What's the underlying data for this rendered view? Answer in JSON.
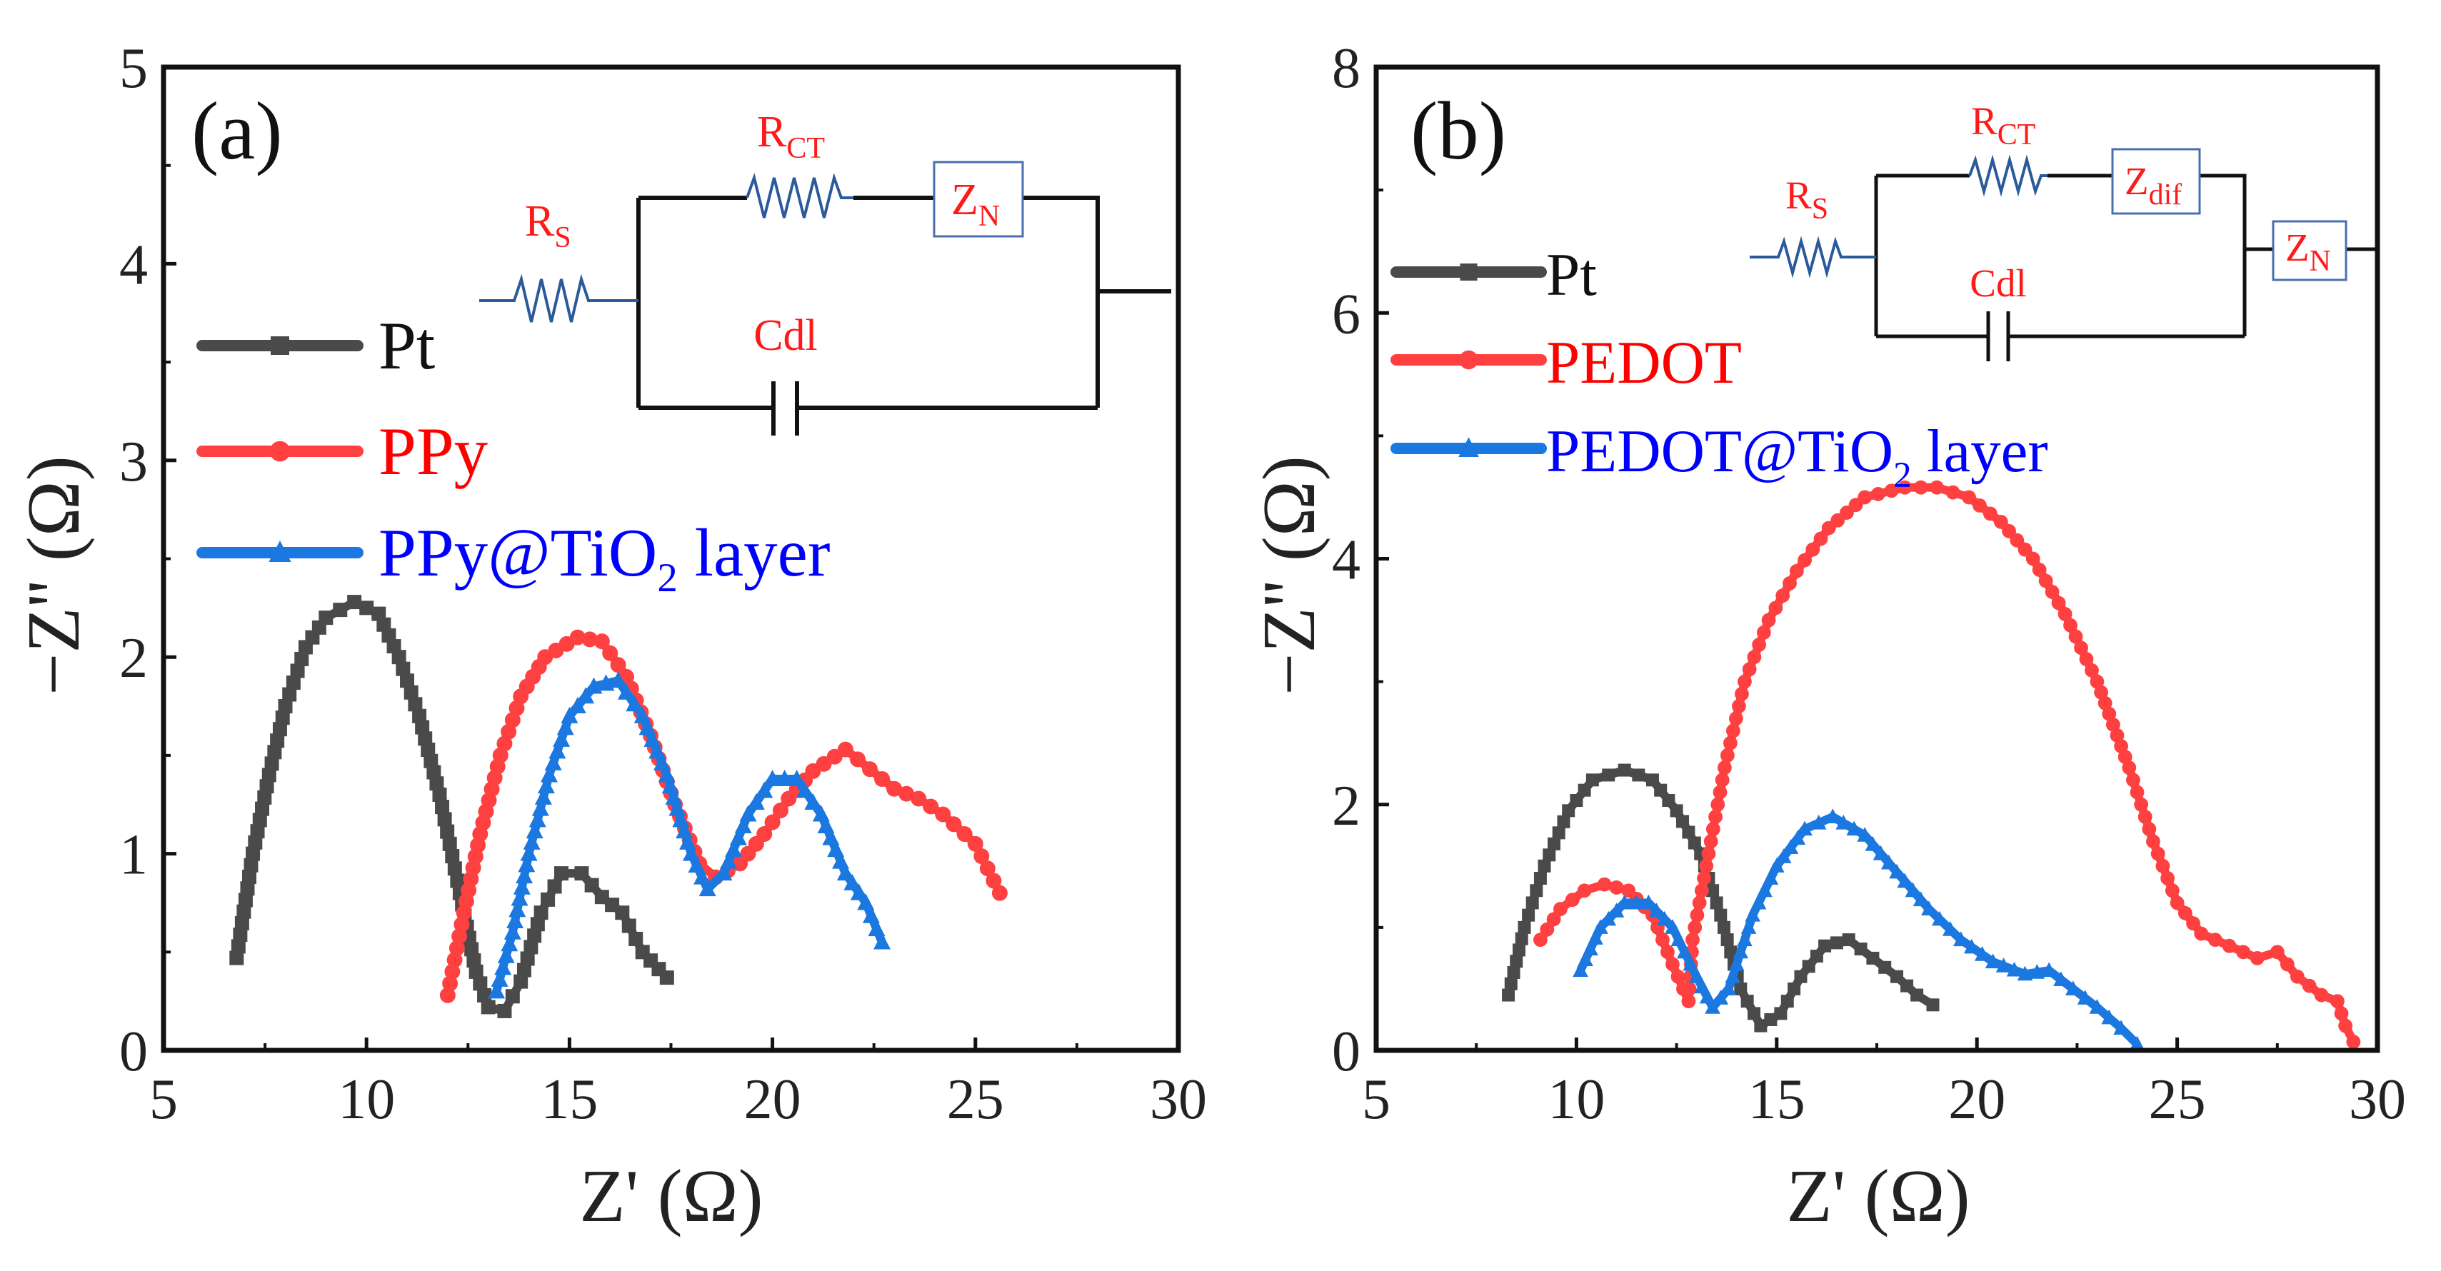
{
  "colors": {
    "Pt": "#4a4a4a",
    "red": "#ff4040",
    "blue": "#1a78e0",
    "text_red": "#ff0000",
    "text_blue": "#0000ff",
    "circuit_wire": "#2a5a9a"
  },
  "chart_data": [
    {
      "type": "scatter",
      "panel_label": "(a)",
      "xlabel": "Z' (Ω)",
      "ylabel": "−Z'' (Ω)",
      "xlim": [
        5,
        30
      ],
      "ylim": [
        0,
        5
      ],
      "xticks": [
        "5",
        "10",
        "15",
        "20",
        "25",
        "30"
      ],
      "yticks": [
        "0",
        "1",
        "2",
        "3",
        "4",
        "5"
      ],
      "legend_position": "upper-left",
      "circuit": {
        "rs": "R",
        "rs_sub": "S",
        "rct": "R",
        "rct_sub": "CT",
        "zn": "Z",
        "zn_sub": "N",
        "cdl": "Cdl"
      },
      "series": [
        {
          "name": "Pt",
          "name_sub": "",
          "name_suffix": "",
          "marker": "square",
          "color": "#4a4a4a",
          "text_color": "#111111",
          "points": [
            [
              6.8,
              0.47
            ],
            [
              7.2,
              1.0
            ],
            [
              7.6,
              1.4
            ],
            [
              8,
              1.75
            ],
            [
              8.5,
              2.05
            ],
            [
              9,
              2.2
            ],
            [
              9.7,
              2.28
            ],
            [
              10.3,
              2.22
            ],
            [
              10.8,
              2.0
            ],
            [
              11.3,
              1.7
            ],
            [
              11.8,
              1.3
            ],
            [
              12.3,
              0.8
            ],
            [
              12.7,
              0.4
            ],
            [
              13,
              0.22
            ],
            [
              13.4,
              0.2
            ],
            [
              13.8,
              0.35
            ],
            [
              14.3,
              0.7
            ],
            [
              14.8,
              0.9
            ],
            [
              15.3,
              0.9
            ],
            [
              15.8,
              0.78
            ],
            [
              16.3,
              0.7
            ],
            [
              16.8,
              0.5
            ],
            [
              17.4,
              0.37
            ]
          ]
        },
        {
          "name": "PPy",
          "name_sub": "",
          "name_suffix": "",
          "marker": "circle",
          "color": "#ff4040",
          "text_color": "#ff0000",
          "points": [
            [
              12,
              0.28
            ],
            [
              12.4,
              0.7
            ],
            [
              12.8,
              1.1
            ],
            [
              13.3,
              1.5
            ],
            [
              13.8,
              1.8
            ],
            [
              14.4,
              2.0
            ],
            [
              15.2,
              2.1
            ],
            [
              15.8,
              2.08
            ],
            [
              16.4,
              1.9
            ],
            [
              17,
              1.6
            ],
            [
              17.6,
              1.25
            ],
            [
              18.2,
              0.95
            ],
            [
              18.6,
              0.88
            ],
            [
              19.2,
              0.95
            ],
            [
              19.8,
              1.1
            ],
            [
              20.4,
              1.28
            ],
            [
              21,
              1.42
            ],
            [
              21.8,
              1.53
            ],
            [
              22.4,
              1.43
            ],
            [
              23,
              1.33
            ],
            [
              23.6,
              1.28
            ],
            [
              24.2,
              1.2
            ],
            [
              25,
              1.05
            ],
            [
              25.6,
              0.8
            ]
          ]
        },
        {
          "name": "PPy@TiO",
          "name_sub": "2",
          "name_suffix": " layer",
          "marker": "triangle",
          "color": "#1a78e0",
          "text_color": "#0000ff",
          "points": [
            [
              13.2,
              0.3
            ],
            [
              13.6,
              0.6
            ],
            [
              14,
              1.0
            ],
            [
              14.5,
              1.4
            ],
            [
              15,
              1.7
            ],
            [
              15.6,
              1.85
            ],
            [
              16.2,
              1.88
            ],
            [
              16.8,
              1.7
            ],
            [
              17.4,
              1.4
            ],
            [
              18,
              1.0
            ],
            [
              18.4,
              0.82
            ],
            [
              18.8,
              0.9
            ],
            [
              19.4,
              1.2
            ],
            [
              20,
              1.38
            ],
            [
              20.6,
              1.38
            ],
            [
              21.2,
              1.2
            ],
            [
              21.8,
              0.9
            ],
            [
              22.3,
              0.75
            ],
            [
              22.7,
              0.55
            ]
          ]
        }
      ]
    },
    {
      "type": "scatter",
      "panel_label": "(b)",
      "xlabel": "Z' (Ω)",
      "ylabel": "−Z'' (Ω)",
      "xlim": [
        5,
        30
      ],
      "ylim": [
        0,
        8
      ],
      "xticks": [
        "5",
        "10",
        "15",
        "20",
        "25",
        "30"
      ],
      "yticks": [
        "0",
        "2",
        "4",
        "6",
        "8"
      ],
      "legend_position": "upper-left",
      "circuit": {
        "rs": "R",
        "rs_sub": "S",
        "rct": "R",
        "rct_sub": "CT",
        "zdif": "Z",
        "zdif_sub": "dif",
        "zn": "Z",
        "zn_sub": "N",
        "cdl": "Cdl"
      },
      "series": [
        {
          "name": "Pt",
          "name_sub": "",
          "name_suffix": "",
          "marker": "square",
          "color": "#4a4a4a",
          "text_color": "#111111",
          "points": [
            [
              8.3,
              0.45
            ],
            [
              8.7,
              1.0
            ],
            [
              9.2,
              1.5
            ],
            [
              9.8,
              1.95
            ],
            [
              10.4,
              2.2
            ],
            [
              11.2,
              2.28
            ],
            [
              11.9,
              2.2
            ],
            [
              12.5,
              1.95
            ],
            [
              13.1,
              1.6
            ],
            [
              13.6,
              1.1
            ],
            [
              14.1,
              0.5
            ],
            [
              14.6,
              0.2
            ],
            [
              15.1,
              0.3
            ],
            [
              15.6,
              0.6
            ],
            [
              16.2,
              0.85
            ],
            [
              16.8,
              0.9
            ],
            [
              17.4,
              0.75
            ],
            [
              18,
              0.6
            ],
            [
              18.5,
              0.45
            ],
            [
              18.9,
              0.37
            ]
          ]
        },
        {
          "name": "PEDOT",
          "name_sub": "",
          "name_suffix": "",
          "marker": "circle",
          "color": "#ff4040",
          "text_color": "#ff0000",
          "points": [
            [
              9.1,
              0.9
            ],
            [
              9.6,
              1.15
            ],
            [
              10.2,
              1.3
            ],
            [
              10.7,
              1.35
            ],
            [
              11.3,
              1.3
            ],
            [
              11.9,
              1.1
            ],
            [
              12.4,
              0.7
            ],
            [
              12.8,
              0.4
            ],
            [
              12.9,
              0.9
            ],
            [
              13.3,
              1.6
            ],
            [
              13.7,
              2.3
            ],
            [
              14.2,
              3.0
            ],
            [
              14.8,
              3.5
            ],
            [
              15.5,
              3.9
            ],
            [
              16.3,
              4.25
            ],
            [
              17.2,
              4.5
            ],
            [
              18.2,
              4.58
            ],
            [
              19,
              4.58
            ],
            [
              19.8,
              4.5
            ],
            [
              20.6,
              4.3
            ],
            [
              21.4,
              4.0
            ],
            [
              22.2,
              3.55
            ],
            [
              23,
              3.0
            ],
            [
              23.8,
              2.3
            ],
            [
              24.4,
              1.7
            ],
            [
              25,
              1.2
            ],
            [
              25.6,
              0.95
            ],
            [
              26.3,
              0.85
            ],
            [
              27,
              0.75
            ],
            [
              27.5,
              0.8
            ],
            [
              28,
              0.6
            ],
            [
              28.6,
              0.45
            ],
            [
              29,
              0.4
            ],
            [
              29.2,
              0.2
            ],
            [
              29.4,
              0.07
            ]
          ]
        },
        {
          "name": "PEDOT@TiO",
          "name_sub": "2",
          "name_suffix": " layer",
          "marker": "triangle",
          "color": "#1a78e0",
          "text_color": "#0000ff",
          "points": [
            [
              10.1,
              0.65
            ],
            [
              10.6,
              1.0
            ],
            [
              11.2,
              1.2
            ],
            [
              11.8,
              1.2
            ],
            [
              12.4,
              1.0
            ],
            [
              13,
              0.6
            ],
            [
              13.4,
              0.35
            ],
            [
              13.8,
              0.5
            ],
            [
              14.4,
              1.1
            ],
            [
              15,
              1.5
            ],
            [
              15.7,
              1.8
            ],
            [
              16.4,
              1.9
            ],
            [
              17.2,
              1.75
            ],
            [
              18,
              1.45
            ],
            [
              18.8,
              1.15
            ],
            [
              19.6,
              0.9
            ],
            [
              20.4,
              0.72
            ],
            [
              21.2,
              0.62
            ],
            [
              21.8,
              0.65
            ],
            [
              22.4,
              0.5
            ],
            [
              23,
              0.35
            ],
            [
              23.6,
              0.18
            ],
            [
              24,
              0.05
            ]
          ]
        }
      ]
    }
  ]
}
